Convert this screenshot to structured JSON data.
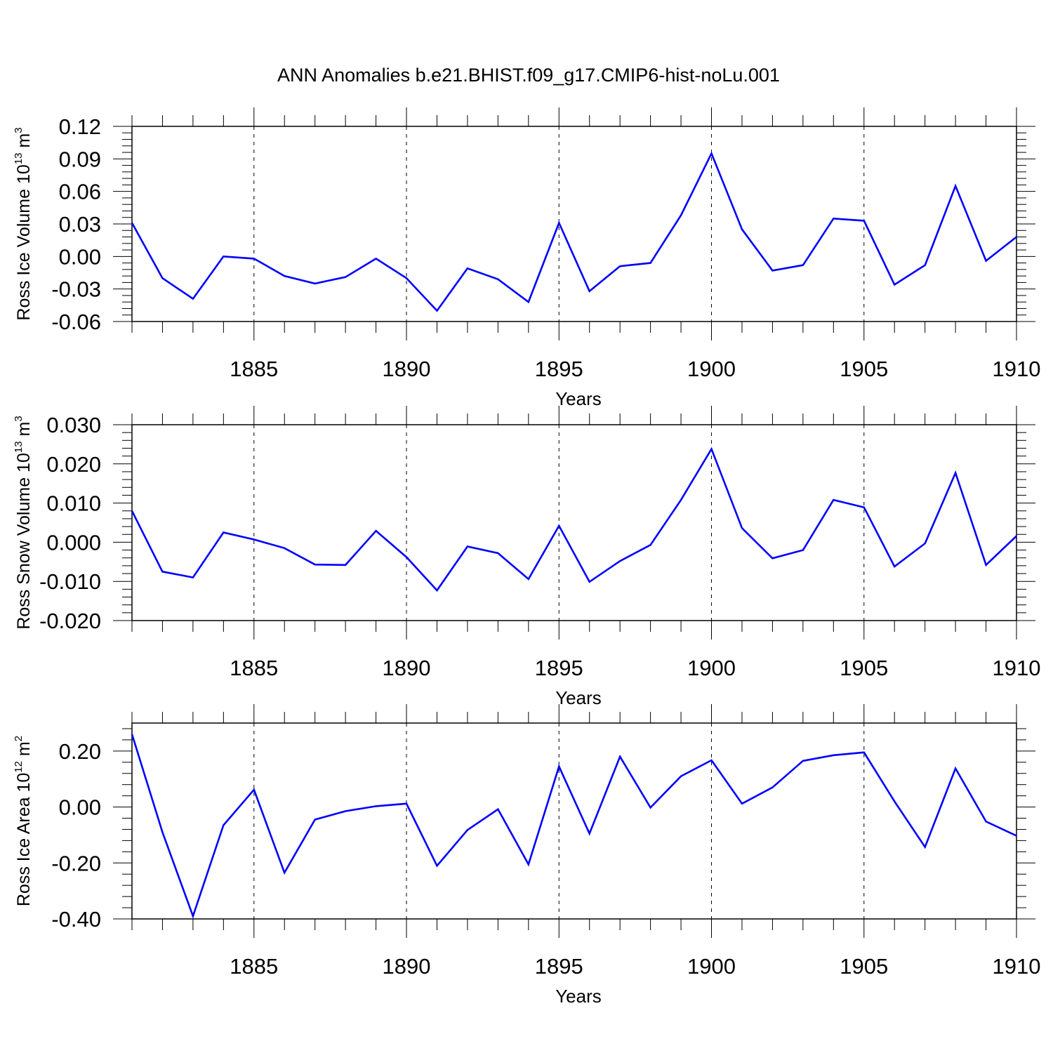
{
  "title": "ANN Anomalies b.e21.BHIST.f09_g17.CMIP6-hist-noLu.001",
  "line_color": "#0000ff",
  "chart_data": [
    {
      "type": "line",
      "xlabel": "Years",
      "ylabel_main": "Ross Ice Volume 10",
      "ylabel_exp": "13",
      "ylabel_unit": "m",
      "ylabel_unit_exp": "3",
      "xlim": [
        1881,
        1910
      ],
      "ylim": [
        -0.06,
        0.12
      ],
      "yticks": [
        -0.06,
        -0.03,
        0.0,
        0.03,
        0.06,
        0.09,
        0.12
      ],
      "ytick_labels": [
        "-0.06",
        "-0.03",
        "0.00",
        "0.03",
        "0.06",
        "0.09",
        "0.12"
      ],
      "xticks": [
        1885,
        1890,
        1895,
        1900,
        1905,
        1910
      ],
      "xtick_labels": [
        "1885",
        "1890",
        "1895",
        "1900",
        "1905",
        "1910"
      ],
      "x": [
        1881,
        1882,
        1883,
        1884,
        1885,
        1886,
        1887,
        1888,
        1889,
        1890,
        1891,
        1892,
        1893,
        1894,
        1895,
        1896,
        1897,
        1898,
        1899,
        1900,
        1901,
        1902,
        1903,
        1904,
        1905,
        1906,
        1907,
        1908,
        1909,
        1910
      ],
      "values": [
        0.031,
        -0.02,
        -0.039,
        0.0,
        -0.002,
        -0.018,
        -0.025,
        -0.019,
        -0.002,
        -0.02,
        -0.05,
        -0.011,
        -0.021,
        -0.042,
        0.031,
        -0.032,
        -0.009,
        -0.006,
        0.038,
        0.095,
        0.025,
        -0.013,
        -0.008,
        0.035,
        0.033,
        -0.026,
        -0.008,
        0.065,
        -0.004,
        0.018
      ]
    },
    {
      "type": "line",
      "xlabel": "Years",
      "ylabel_main": "Ross Snow Volume 10",
      "ylabel_exp": "13",
      "ylabel_unit": "m",
      "ylabel_unit_exp": "3",
      "xlim": [
        1881,
        1910
      ],
      "ylim": [
        -0.02,
        0.03
      ],
      "yticks": [
        -0.02,
        -0.01,
        0.0,
        0.01,
        0.02,
        0.03
      ],
      "ytick_labels": [
        "-0.020",
        "-0.010",
        "0.000",
        "0.010",
        "0.020",
        "0.030"
      ],
      "xticks": [
        1885,
        1890,
        1895,
        1900,
        1905,
        1910
      ],
      "xtick_labels": [
        "1885",
        "1890",
        "1895",
        "1900",
        "1905",
        "1910"
      ],
      "x": [
        1881,
        1882,
        1883,
        1884,
        1885,
        1886,
        1887,
        1888,
        1889,
        1890,
        1891,
        1892,
        1893,
        1894,
        1895,
        1896,
        1897,
        1898,
        1899,
        1900,
        1901,
        1902,
        1903,
        1904,
        1905,
        1906,
        1907,
        1908,
        1909,
        1910
      ],
      "values": [
        0.008,
        -0.0075,
        -0.009,
        0.0025,
        0.0007,
        -0.0015,
        -0.0057,
        -0.0058,
        0.0029,
        -0.0038,
        -0.0123,
        -0.0011,
        -0.0028,
        -0.0094,
        0.0042,
        -0.0101,
        -0.0048,
        -0.0007,
        0.0108,
        0.0238,
        0.0036,
        -0.0041,
        -0.002,
        0.0108,
        0.0089,
        -0.0062,
        -0.0003,
        0.0177,
        -0.0058,
        0.0016
      ]
    },
    {
      "type": "line",
      "xlabel": "Years",
      "ylabel_main": "Ross Ice Area 10",
      "ylabel_exp": "12",
      "ylabel_unit": "m",
      "ylabel_unit_exp": "2",
      "xlim": [
        1881,
        1910
      ],
      "ylim": [
        -0.4,
        0.3
      ],
      "yticks": [
        -0.4,
        -0.2,
        0.0,
        0.2
      ],
      "ytick_labels": [
        "-0.40",
        "-0.20",
        "0.00",
        "0.20"
      ],
      "xticks": [
        1885,
        1890,
        1895,
        1900,
        1905,
        1910
      ],
      "xtick_labels": [
        "1885",
        "1890",
        "1895",
        "1900",
        "1905",
        "1910"
      ],
      "x": [
        1881,
        1882,
        1883,
        1884,
        1885,
        1886,
        1887,
        1888,
        1889,
        1890,
        1891,
        1892,
        1893,
        1894,
        1895,
        1896,
        1897,
        1898,
        1899,
        1900,
        1901,
        1902,
        1903,
        1904,
        1905,
        1906,
        1907,
        1908,
        1909,
        1910
      ],
      "values": [
        0.26,
        -0.09,
        -0.39,
        -0.065,
        0.062,
        -0.235,
        -0.045,
        -0.015,
        0.003,
        0.012,
        -0.21,
        -0.082,
        -0.008,
        -0.205,
        0.145,
        -0.095,
        0.18,
        -0.002,
        0.11,
        0.167,
        0.012,
        0.07,
        0.165,
        0.185,
        0.195,
        0.02,
        -0.143,
        0.138,
        -0.052,
        -0.103
      ]
    }
  ]
}
